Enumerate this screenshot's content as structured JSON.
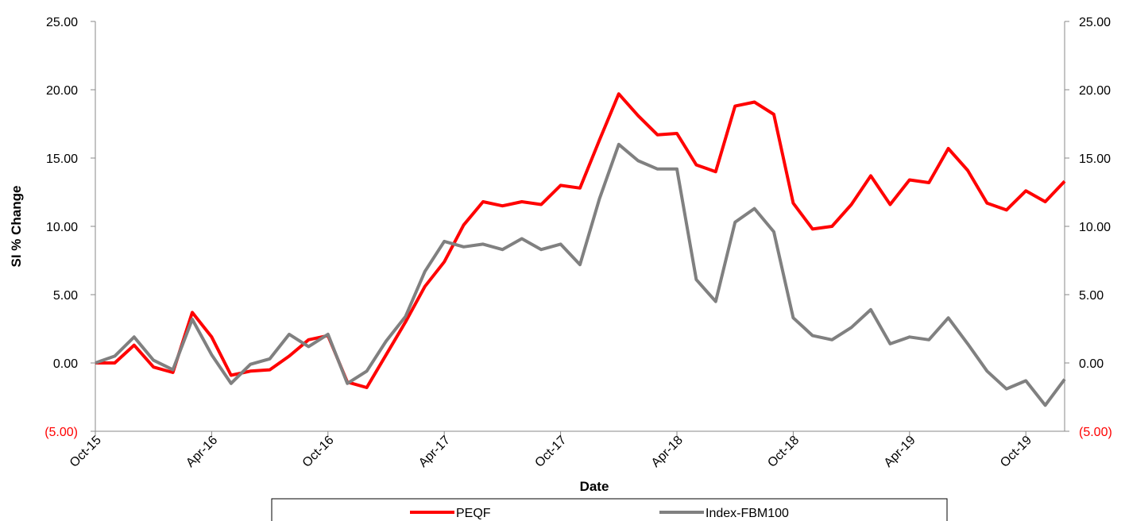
{
  "chart_data": {
    "type": "line",
    "x_label": "Date",
    "y_label": "SI % Change",
    "categories": [
      "Oct-15",
      null,
      null,
      null,
      null,
      null,
      "Apr-16",
      null,
      null,
      null,
      null,
      null,
      "Oct-16",
      null,
      null,
      null,
      null,
      null,
      "Apr-17",
      null,
      null,
      null,
      null,
      null,
      "Oct-17",
      null,
      null,
      null,
      null,
      null,
      "Apr-18",
      null,
      null,
      null,
      null,
      null,
      "Oct-18",
      null,
      null,
      null,
      null,
      null,
      "Apr-19",
      null,
      null,
      null,
      null,
      null,
      "Oct-19",
      null,
      null
    ],
    "series": [
      {
        "name": "PEQF",
        "color": "#ff0000",
        "values": [
          0.0,
          0.0,
          1.3,
          -0.3,
          -0.7,
          3.7,
          1.9,
          -0.9,
          -0.6,
          -0.5,
          0.5,
          1.7,
          2.0,
          -1.4,
          -1.8,
          0.6,
          3.0,
          5.6,
          7.4,
          10.1,
          11.8,
          11.5,
          11.8,
          11.6,
          13.0,
          12.8,
          16.3,
          19.7,
          18.1,
          16.7,
          16.8,
          14.5,
          14.0,
          18.8,
          19.1,
          18.2,
          11.7,
          9.8,
          10.0,
          11.6,
          13.7,
          11.6,
          13.4,
          13.2,
          15.7,
          14.1,
          11.7,
          11.2,
          12.6,
          11.8,
          13.3
        ]
      },
      {
        "name": "Index-FBM100",
        "color": "#808080",
        "values": [
          0.0,
          0.5,
          1.9,
          0.2,
          -0.5,
          3.2,
          0.6,
          -1.5,
          -0.1,
          0.3,
          2.1,
          1.2,
          2.1,
          -1.5,
          -0.6,
          1.6,
          3.4,
          6.7,
          8.9,
          8.5,
          8.7,
          8.3,
          9.1,
          8.3,
          8.7,
          7.2,
          12.0,
          16.0,
          14.8,
          14.2,
          14.2,
          6.1,
          4.5,
          10.3,
          11.3,
          9.6,
          3.3,
          2.0,
          1.7,
          2.6,
          3.9,
          1.4,
          1.9,
          1.7,
          3.3,
          1.4,
          -0.6,
          -1.9,
          -1.3,
          -3.1,
          -1.2
        ]
      }
    ],
    "ylim": [
      -5,
      25
    ],
    "yticks": [
      {
        "value": -5,
        "label": "(5.00)"
      },
      {
        "value": 0,
        "label": "0.00"
      },
      {
        "value": 5,
        "label": "5.00"
      },
      {
        "value": 10,
        "label": "10.00"
      },
      {
        "value": 15,
        "label": "15.00"
      },
      {
        "value": 20,
        "label": "20.00"
      },
      {
        "value": 25,
        "label": "25.00"
      }
    ],
    "y2lim": [
      -5,
      25
    ],
    "y2ticks": [
      {
        "value": -5,
        "label": "(5.00)"
      },
      {
        "value": 0,
        "label": "0.00"
      },
      {
        "value": 5,
        "label": "5.00"
      },
      {
        "value": 10,
        "label": "10.00"
      },
      {
        "value": 15,
        "label": "15.00"
      },
      {
        "value": 20,
        "label": "20.00"
      },
      {
        "value": 25,
        "label": "25.00"
      }
    ],
    "negative_tick_color": "#ff0000",
    "grid": false,
    "legend": "bottom"
  }
}
